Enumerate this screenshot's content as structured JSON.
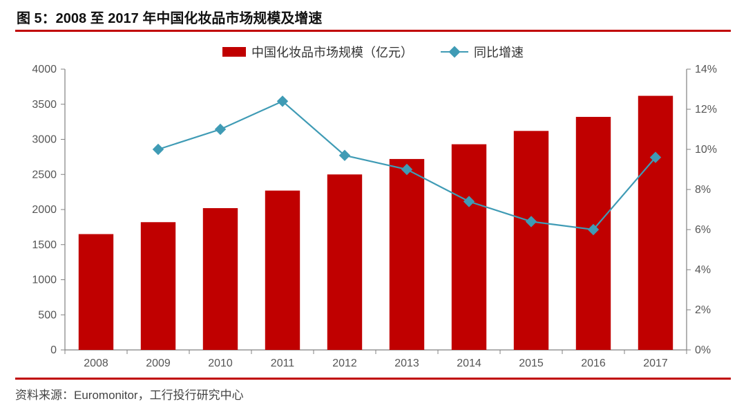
{
  "title": "图 5：2008 至 2017 年中国化妆品市场规模及增速",
  "title_fontsize": 20,
  "title_color": "#111111",
  "rule_color": "#c00000",
  "source_label": "资料来源：Euromonitor，工行投行研究中心",
  "source_fontsize": 17,
  "legend": {
    "bar_label": "中国化妆品市场规模（亿元）",
    "line_label": "同比增速",
    "fontsize": 18,
    "text_color": "#333333"
  },
  "chart": {
    "type": "bar+line",
    "background_color": "#ffffff",
    "axis_line_color": "#808080",
    "tick_mark_color": "#808080",
    "tick_label_color": "#555555",
    "label_fontsize": 16,
    "categories": [
      "2008",
      "2009",
      "2010",
      "2011",
      "2012",
      "2013",
      "2014",
      "2015",
      "2016",
      "2017"
    ],
    "bars": {
      "values": [
        1650,
        1820,
        2020,
        2270,
        2500,
        2720,
        2930,
        3120,
        3320,
        3620
      ],
      "color": "#c00000",
      "width_ratio": 0.56
    },
    "line": {
      "values": [
        null,
        10.0,
        11.0,
        12.4,
        9.7,
        9.0,
        7.4,
        6.4,
        6.0,
        9.6
      ],
      "color": "#3f9bb5",
      "marker": "diamond",
      "marker_size": 12,
      "line_width": 2.2
    },
    "y_left": {
      "min": 0,
      "max": 4000,
      "step": 500,
      "format": "plain"
    },
    "y_right": {
      "min": 0,
      "max": 14,
      "step": 2,
      "format": "percent"
    }
  }
}
